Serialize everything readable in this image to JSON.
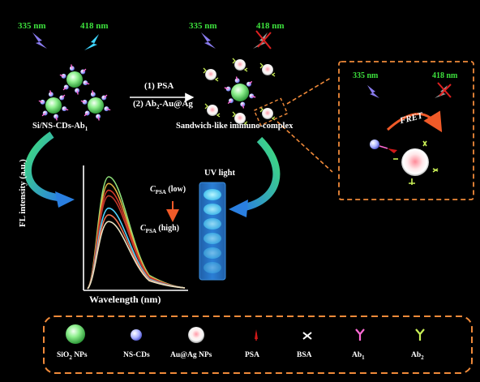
{
  "colors": {
    "background": "#000000",
    "wavelength_green": "#3de03d",
    "dash_orange": "#f08a3a",
    "sio2": "#7ee08a",
    "ncd": "#9aa3ff",
    "auag": "#f4c2c2",
    "psa": "#d01818",
    "ab1": "#ff6ad5",
    "ab2": "#c9ef56",
    "cuvette": "#4fd3ff"
  },
  "top": {
    "wl_left_1": "335 nm",
    "wl_left_2": "418 nm",
    "wl_mid_1": "335 nm",
    "wl_mid_2": "418 nm"
  },
  "zoom_panel": {
    "wl_1": "335 nm",
    "wl_2": "418 nm",
    "fret_label": "FRET"
  },
  "reaction": {
    "step_1": "(1) PSA",
    "step_2_prefix": "(2) Ab",
    "step_2_sub": "2",
    "step_2_suffix": "-Au@Ag"
  },
  "labels": {
    "left_complex_prefix": "Si/NS-CDs-Ab",
    "left_complex_sub": "1",
    "right_complex": "Sandwich-like immuno-complex"
  },
  "chart": {
    "ylabel": "FL intensity (a.u.)",
    "xlabel": "Wavelength (nm)",
    "c_symbol": "C",
    "c_sub": "PSA",
    "c_low": "(low)",
    "c_high": "(high)",
    "uv_label": "UV light"
  },
  "chart_data": {
    "type": "line",
    "title": "",
    "xlabel": "Wavelength (nm)",
    "ylabel": "FL intensity (a.u.)",
    "note": "Relative emission curves; series ordered from low to high C_PSA",
    "series": [
      {
        "color": "#8fe07a",
        "peak": 1.0
      },
      {
        "color": "#e0b040",
        "peak": 0.94
      },
      {
        "color": "#d43a2a",
        "peak": 0.88
      },
      {
        "color": "#c0392b",
        "peak": 0.83
      },
      {
        "color": "#4fd3ff",
        "peak": 0.72
      },
      {
        "color": "#f07050",
        "peak": 0.66
      },
      {
        "color": "#e8e0c0",
        "peak": 0.6
      }
    ]
  },
  "legend": {
    "items": [
      {
        "label_main": "SiO",
        "label_sub": "2",
        "label_tail": " NPs",
        "icon": "sio2-nanoparticle-icon"
      },
      {
        "label_main": "NS-CDs",
        "label_sub": "",
        "label_tail": "",
        "icon": "ns-cd-icon"
      },
      {
        "label_main": "Au@Ag NPs",
        "label_sub": "",
        "label_tail": "",
        "icon": "au-ag-nanoparticle-icon"
      },
      {
        "label_main": "PSA",
        "label_sub": "",
        "label_tail": "",
        "icon": "psa-icon"
      },
      {
        "label_main": "BSA",
        "label_sub": "",
        "label_tail": "",
        "icon": "bsa-icon"
      },
      {
        "label_main": "Ab",
        "label_sub": "1",
        "label_tail": "",
        "icon": "ab1-icon"
      },
      {
        "label_main": "Ab",
        "label_sub": "2",
        "label_tail": "",
        "icon": "ab2-icon"
      }
    ]
  }
}
